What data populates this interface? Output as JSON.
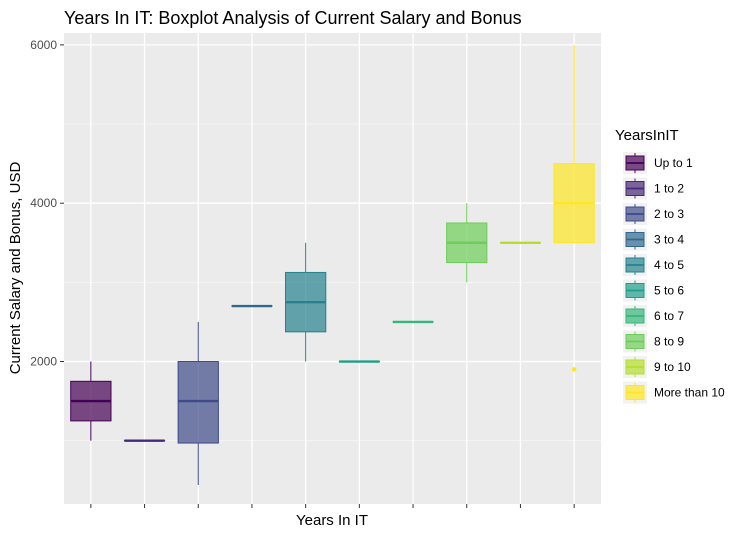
{
  "chart_data": {
    "type": "boxplot",
    "title": "Years In IT: Boxplot Analysis of Current Salary and Bonus",
    "xlabel": "Years In IT",
    "ylabel": "Current Salary and Bonus, USD",
    "ylim": [
      200,
      6150
    ],
    "yticks": [
      2000,
      4000,
      6000
    ],
    "grid": true,
    "legend": {
      "title": "YearsInIT",
      "position": "right"
    },
    "categories": [
      "Up to 1",
      "1 to 2",
      "2 to 3",
      "3 to 4",
      "4 to 5",
      "5 to 6",
      "6 to 7",
      "8 to 9",
      "9 to 10",
      "More than 10"
    ],
    "boxes": [
      {
        "name": "Up to 1",
        "min": 1000,
        "q1": 1250,
        "median": 1500,
        "q3": 1750,
        "max": 2000,
        "outliers": [],
        "color": "#440154"
      },
      {
        "name": "1 to 2",
        "min": 1000,
        "q1": 1000,
        "median": 1000,
        "q3": 1000,
        "max": 1000,
        "outliers": [],
        "color": "#482878"
      },
      {
        "name": "2 to 3",
        "min": 440,
        "q1": 970,
        "median": 1500,
        "q3": 2000,
        "max": 2500,
        "outliers": [],
        "color": "#3E4A89"
      },
      {
        "name": "3 to 4",
        "min": 2700,
        "q1": 2700,
        "median": 2700,
        "q3": 2700,
        "max": 2700,
        "outliers": [],
        "color": "#31688E"
      },
      {
        "name": "4 to 5",
        "min": 2000,
        "q1": 2375,
        "median": 2750,
        "q3": 3125,
        "max": 3500,
        "outliers": [],
        "color": "#26828E"
      },
      {
        "name": "5 to 6",
        "min": 2000,
        "q1": 2000,
        "median": 2000,
        "q3": 2000,
        "max": 2000,
        "outliers": [],
        "color": "#1F9E89"
      },
      {
        "name": "6 to 7",
        "min": 2500,
        "q1": 2500,
        "median": 2500,
        "q3": 2500,
        "max": 2500,
        "outliers": [],
        "color": "#35B779"
      },
      {
        "name": "8 to 9",
        "min": 3000,
        "q1": 3250,
        "median": 3500,
        "q3": 3750,
        "max": 4000,
        "outliers": [],
        "color": "#6DCD59"
      },
      {
        "name": "9 to 10",
        "min": 3500,
        "q1": 3500,
        "median": 3500,
        "q3": 3500,
        "max": 3500,
        "outliers": [],
        "color": "#B4DE2C"
      },
      {
        "name": "More than 10",
        "min": 3500,
        "q1": 3500,
        "median": 4000,
        "q3": 4500,
        "max": 6000,
        "outliers": [
          1900
        ],
        "color": "#FDE725"
      }
    ]
  }
}
